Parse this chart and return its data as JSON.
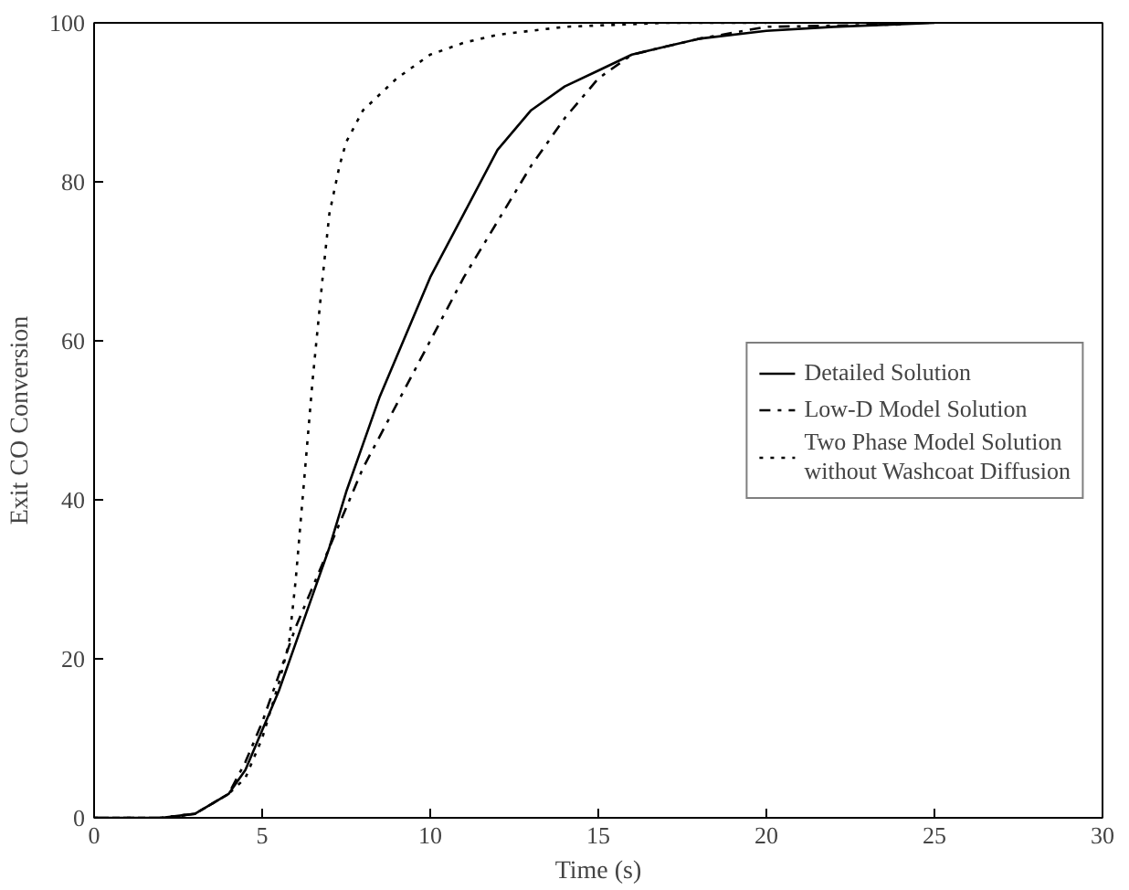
{
  "chart_data": {
    "type": "line",
    "xlabel": "Time (s)",
    "ylabel": "Exit CO Conversion",
    "xlim": [
      0,
      30
    ],
    "ylim": [
      0,
      100
    ],
    "xticks": [
      0,
      5,
      10,
      15,
      20,
      25,
      30
    ],
    "yticks": [
      0,
      20,
      40,
      60,
      80,
      100
    ],
    "grid": false,
    "legend": "right",
    "series": [
      {
        "name": "Detailed Solution",
        "color": "#000000",
        "line_style": "solid",
        "x": [
          0,
          2,
          3,
          4,
          4.5,
          5,
          5.5,
          6,
          6.5,
          7,
          7.5,
          8,
          8.5,
          9,
          10,
          11,
          12,
          13,
          14,
          15,
          16,
          17,
          18,
          20,
          22,
          25
        ],
        "values": [
          0,
          0,
          0.5,
          3,
          6,
          11,
          16,
          22,
          28,
          34,
          41,
          47,
          53,
          58,
          68,
          76,
          84,
          89,
          92,
          94,
          96,
          97,
          98,
          99,
          99.5,
          100
        ]
      },
      {
        "name": "Low-D Model Solution",
        "color": "#000000",
        "line_style": "dashdot",
        "x": [
          0,
          2,
          3,
          4,
          4.5,
          5,
          5.5,
          6,
          6.5,
          7,
          7.5,
          8,
          9,
          10,
          11,
          12,
          13,
          14,
          15,
          16,
          17,
          18,
          20,
          24
        ],
        "values": [
          0,
          0,
          0.5,
          3,
          7,
          12,
          18,
          24,
          29,
          34,
          39,
          44,
          52,
          60,
          68,
          75,
          82,
          88,
          93,
          96,
          97,
          98,
          99.5,
          99.8
        ]
      },
      {
        "name": "Two Phase Model Solution\nwithout Washcoat Diffusion",
        "color": "#000000",
        "line_style": "dotted",
        "x": [
          0,
          2,
          3,
          4,
          4.5,
          5,
          5.5,
          5.8,
          6,
          6.3,
          6.5,
          6.8,
          7,
          7.3,
          7.5,
          8,
          8.5,
          9,
          10,
          11,
          12,
          14,
          17,
          20
        ],
        "values": [
          0,
          0,
          0.5,
          3,
          5,
          10,
          17,
          22,
          30,
          45,
          55,
          68,
          76,
          82,
          85,
          89,
          91,
          93,
          96,
          97.5,
          98.5,
          99.5,
          100,
          100
        ]
      }
    ]
  }
}
